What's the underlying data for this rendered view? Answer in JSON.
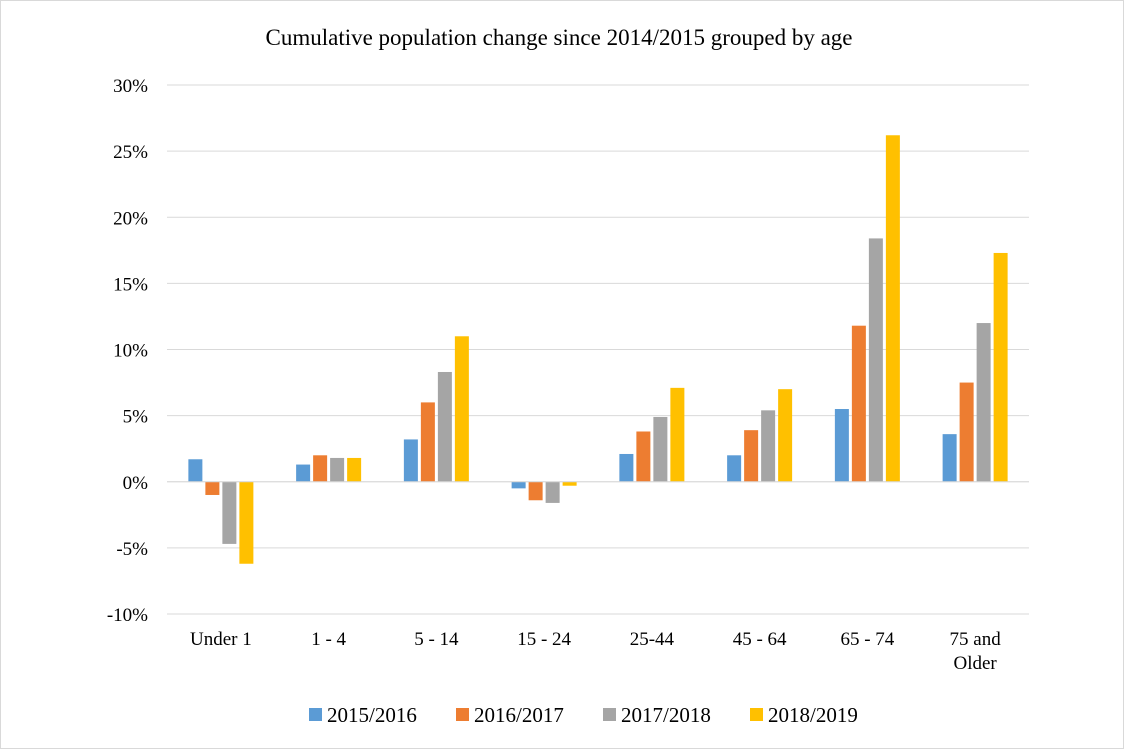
{
  "chart_data": {
    "type": "bar",
    "title": "Cumulative population change since 2014/2015 grouped by age",
    "xlabel": "",
    "ylabel": "",
    "categories": [
      "Under 1",
      "1 - 4",
      "5 - 14",
      "15 - 24",
      "25-44",
      "45 - 64",
      "65 - 74",
      "75 and Older"
    ],
    "category_lines": [
      [
        "Under 1"
      ],
      [
        "1 - 4"
      ],
      [
        "5 - 14"
      ],
      [
        "15 - 24"
      ],
      [
        "25-44"
      ],
      [
        "45 - 64"
      ],
      [
        "65 - 74"
      ],
      [
        "75 and",
        "Older"
      ]
    ],
    "series": [
      {
        "name": "2015/2016",
        "color": "#5b9bd5",
        "values": [
          1.7,
          1.3,
          3.2,
          -0.5,
          2.1,
          2.0,
          5.5,
          3.6
        ]
      },
      {
        "name": "2016/2017",
        "color": "#ed7d31",
        "values": [
          -1.0,
          2.0,
          6.0,
          -1.4,
          3.8,
          3.9,
          11.8,
          7.5
        ]
      },
      {
        "name": "2017/2018",
        "color": "#a5a5a5",
        "values": [
          -4.7,
          1.8,
          8.3,
          -1.6,
          4.9,
          5.4,
          18.4,
          12.0
        ]
      },
      {
        "name": "2018/2019",
        "color": "#ffc000",
        "values": [
          -6.2,
          1.8,
          11.0,
          -0.3,
          7.1,
          7.0,
          26.2,
          17.3
        ]
      }
    ],
    "ylim": [
      -10,
      30
    ],
    "yticks": [
      -10,
      -5,
      0,
      5,
      10,
      15,
      20,
      25,
      30
    ],
    "ytick_labels": [
      "-10%",
      "-5%",
      "0%",
      "5%",
      "10%",
      "15%",
      "20%",
      "25%",
      "30%"
    ],
    "grid": true,
    "legend": "bottom"
  }
}
